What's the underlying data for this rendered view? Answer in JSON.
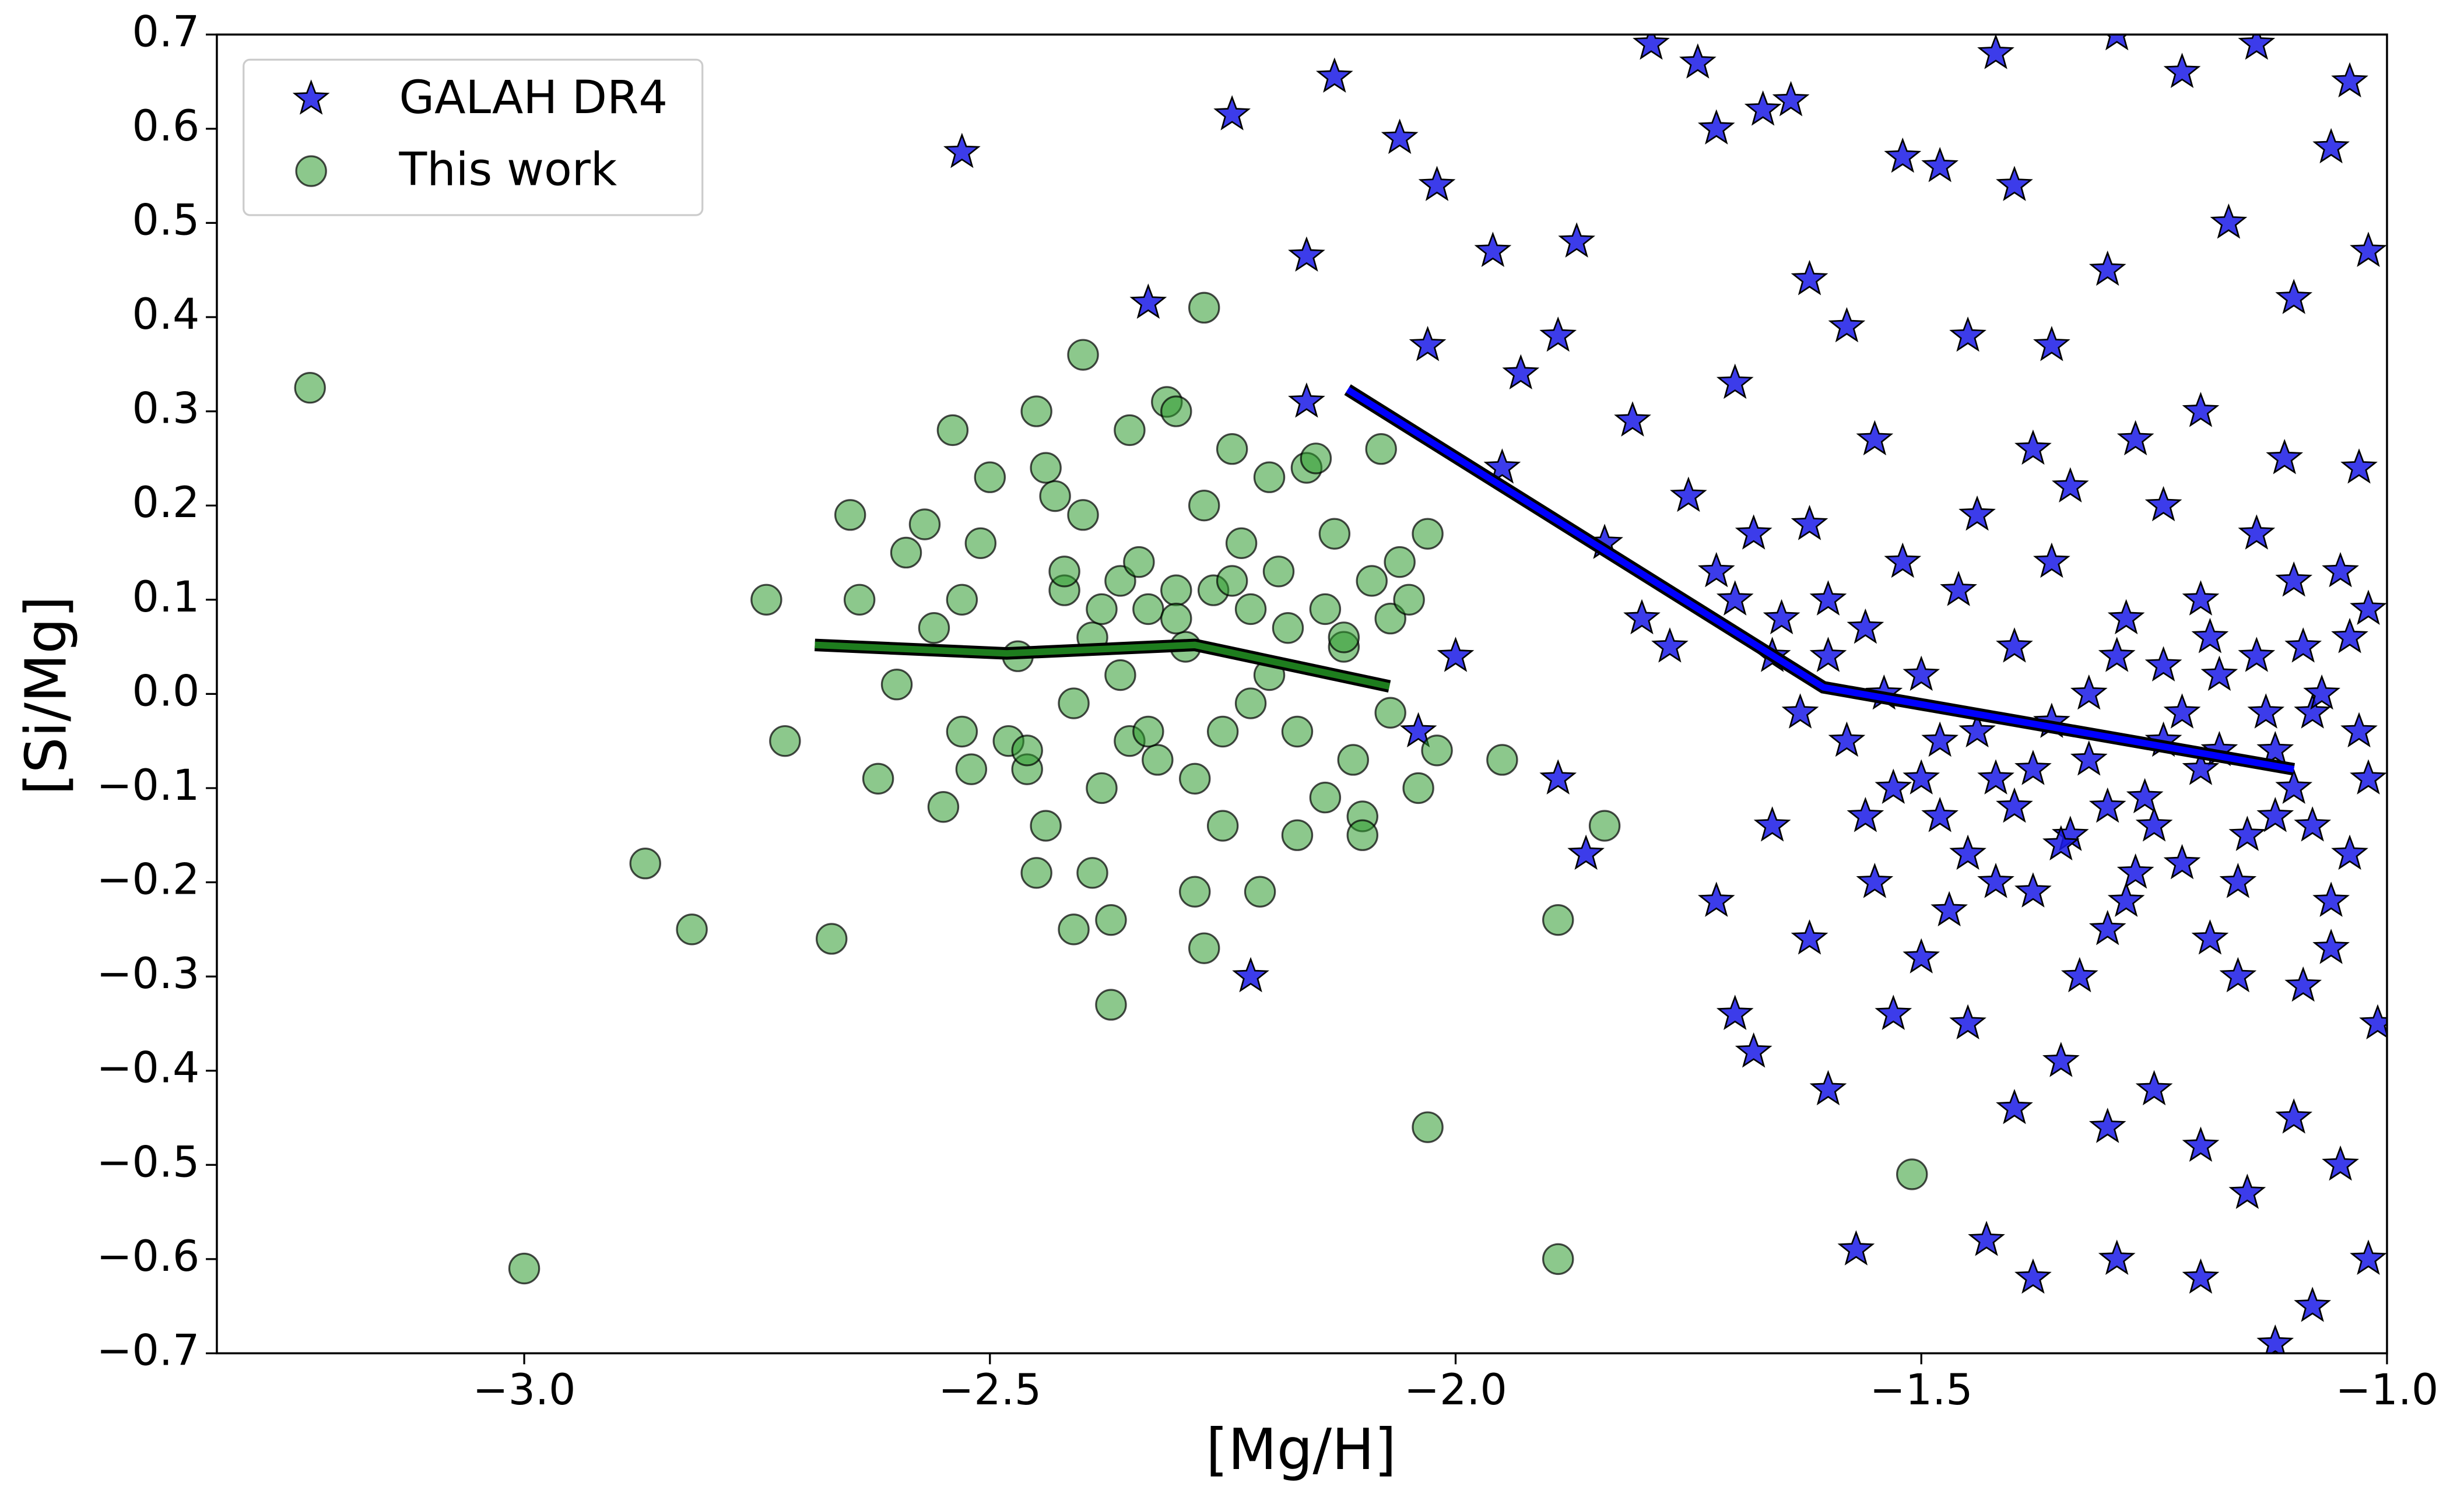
{
  "chart_data": {
    "type": "scatter",
    "x_label": "[Mg/H]",
    "y_label": "[Si/Mg]",
    "xlim": [
      -3.33,
      -1.0
    ],
    "ylim": [
      -0.7,
      0.7
    ],
    "xticks": [
      {
        "value": -3.0,
        "label": "−3.0"
      },
      {
        "value": -2.5,
        "label": "−2.5"
      },
      {
        "value": -2.0,
        "label": "−2.0"
      },
      {
        "value": -1.5,
        "label": "−1.5"
      },
      {
        "value": -1.0,
        "label": "−1.0"
      }
    ],
    "yticks": [
      {
        "value": -0.7,
        "label": "−0.7"
      },
      {
        "value": -0.6,
        "label": "−0.6"
      },
      {
        "value": -0.5,
        "label": "−0.5"
      },
      {
        "value": -0.4,
        "label": "−0.4"
      },
      {
        "value": -0.3,
        "label": "−0.3"
      },
      {
        "value": -0.2,
        "label": "−0.2"
      },
      {
        "value": -0.1,
        "label": "−0.1"
      },
      {
        "value": 0.0,
        "label": "0.0"
      },
      0.1,
      0.2,
      0.3,
      0.4,
      0.5,
      0.6,
      0.7
    ],
    "legend": "upper left",
    "grid": false,
    "series": [
      {
        "name": "GALAH DR4",
        "marker": "star",
        "color": "#1a1ae6",
        "edgecolor": "#000000",
        "x": [
          -2.53,
          -2.33,
          -2.24,
          -2.13,
          -2.22,
          -2.16,
          -2.16,
          -2.06,
          -2.02,
          -2.03,
          -2.0,
          -1.96,
          -2.04,
          -1.89,
          -1.87,
          -1.89,
          -1.86,
          -1.79,
          -1.74,
          -1.72,
          -1.67,
          -1.64,
          -1.62,
          -1.58,
          -1.52,
          -1.48,
          -1.42,
          -1.4,
          -1.36,
          -1.29,
          -1.22,
          -1.14,
          -1.04,
          -1.06,
          -1.1,
          -1.02,
          -1.17,
          -1.3,
          -1.45,
          -1.55,
          -1.7,
          -1.75,
          -1.81,
          -1.93,
          -1.95,
          -1.84,
          -1.8,
          -1.77,
          -1.72,
          -1.68,
          -1.66,
          -1.63,
          -1.6,
          -1.58,
          -1.56,
          -1.53,
          -1.5,
          -1.48,
          -1.46,
          -1.44,
          -1.42,
          -1.4,
          -1.38,
          -1.36,
          -1.34,
          -1.32,
          -1.3,
          -1.28,
          -1.26,
          -1.24,
          -1.22,
          -1.2,
          -1.18,
          -1.16,
          -1.14,
          -1.12,
          -1.1,
          -1.08,
          -1.06,
          -1.04,
          -1.02,
          -1.01,
          -1.55,
          -1.5,
          -1.45,
          -1.4,
          -1.35,
          -1.3,
          -1.25,
          -1.2,
          -1.15,
          -1.1,
          -1.05,
          -1.02,
          -1.43,
          -1.38,
          -1.29,
          -1.2,
          -1.12,
          -1.08,
          -1.57,
          -1.6,
          -1.68,
          -1.7,
          -1.72,
          -1.66,
          -1.62,
          -1.53,
          -1.47,
          -1.33,
          -1.27,
          -1.19,
          -1.09,
          -1.04,
          -1.12,
          -1.18,
          -1.24,
          -1.3,
          -1.36,
          -1.42,
          -1.48,
          -1.54,
          -1.6,
          -1.65,
          -1.7,
          -1.62,
          -1.52,
          -1.44,
          -1.34,
          -1.24,
          -1.14,
          -1.05,
          -1.03,
          -1.11,
          -1.2,
          -1.27,
          -1.38,
          -1.1,
          -1.15,
          -1.2,
          -1.25,
          -1.35,
          -1.4,
          -1.45,
          -1.08,
          -1.03,
          -1.07,
          -1.13,
          -1.22,
          -1.32,
          -1.5,
          -1.56,
          -1.06,
          -1.16,
          -1.28,
          -1.38,
          -1.02,
          -1.09,
          -1.19,
          -1.29
        ],
        "values": [
          0.575,
          0.415,
          0.615,
          0.655,
          -0.3,
          0.465,
          0.31,
          0.59,
          0.54,
          0.37,
          0.04,
          0.47,
          -0.04,
          0.38,
          0.48,
          -0.09,
          -0.17,
          0.69,
          0.67,
          0.6,
          0.62,
          0.63,
          0.44,
          0.39,
          0.57,
          0.56,
          0.68,
          0.54,
          0.37,
          0.7,
          0.66,
          0.69,
          0.65,
          0.58,
          0.42,
          0.47,
          0.5,
          0.45,
          0.38,
          0.27,
          0.33,
          0.21,
          0.29,
          0.34,
          0.24,
          0.16,
          0.08,
          0.05,
          0.13,
          0.17,
          0.04,
          -0.02,
          0.1,
          -0.05,
          0.07,
          -0.1,
          0.02,
          -0.13,
          0.11,
          -0.04,
          -0.2,
          0.05,
          -0.08,
          0.14,
          -0.15,
          0.0,
          -0.25,
          0.08,
          -0.11,
          0.03,
          -0.18,
          0.1,
          -0.06,
          -0.3,
          0.04,
          -0.13,
          0.12,
          -0.02,
          -0.22,
          0.06,
          -0.09,
          -0.35,
          -0.2,
          -0.28,
          -0.35,
          -0.44,
          -0.39,
          -0.46,
          -0.42,
          -0.48,
          -0.53,
          -0.45,
          -0.5,
          -0.6,
          -0.58,
          -0.62,
          -0.6,
          -0.62,
          -0.69,
          -0.65,
          -0.59,
          -0.42,
          -0.38,
          -0.34,
          -0.22,
          -0.14,
          -0.26,
          -0.34,
          -0.23,
          -0.3,
          -0.19,
          -0.26,
          -0.31,
          -0.17,
          -0.06,
          0.02,
          -0.05,
          -0.12,
          -0.03,
          -0.09,
          -0.05,
          0.0,
          0.04,
          0.08,
          0.1,
          0.18,
          0.14,
          0.19,
          0.22,
          0.2,
          0.17,
          0.13,
          0.24,
          0.25,
          0.3,
          0.27,
          0.26,
          -0.1,
          -0.15,
          -0.08,
          -0.14,
          -0.16,
          -0.12,
          -0.17,
          -0.14,
          -0.04,
          0.0,
          -0.02,
          -0.02,
          -0.07,
          -0.09,
          -0.13,
          -0.27,
          -0.2,
          -0.22,
          -0.21,
          0.09,
          0.05,
          0.06,
          0.04
        ]
      },
      {
        "name": "This work",
        "marker": "circle",
        "color": "#2e9a2e",
        "edgecolor": "#000000",
        "x": [
          -3.23,
          -3.0,
          -2.87,
          -2.82,
          -2.74,
          -2.72,
          -2.67,
          -2.65,
          -2.64,
          -2.62,
          -2.6,
          -2.59,
          -2.57,
          -2.56,
          -2.55,
          -2.54,
          -2.53,
          -2.53,
          -2.52,
          -2.51,
          -2.48,
          -2.47,
          -2.46,
          -2.45,
          -2.45,
          -2.44,
          -2.44,
          -2.43,
          -2.42,
          -2.41,
          -2.41,
          -2.4,
          -2.4,
          -2.39,
          -2.39,
          -2.38,
          -2.37,
          -2.37,
          -2.36,
          -2.36,
          -2.35,
          -2.35,
          -2.34,
          -2.33,
          -2.32,
          -2.31,
          -2.3,
          -2.3,
          -2.29,
          -2.28,
          -2.28,
          -2.27,
          -2.27,
          -2.26,
          -2.25,
          -2.25,
          -2.24,
          -2.23,
          -2.22,
          -2.22,
          -2.21,
          -2.2,
          -2.19,
          -2.18,
          -2.17,
          -2.17,
          -2.16,
          -2.15,
          -2.14,
          -2.14,
          -2.27,
          -2.13,
          -2.12,
          -2.11,
          -2.1,
          -2.1,
          -2.09,
          -2.08,
          -2.07,
          -2.07,
          -2.06,
          -2.05,
          -2.04,
          -2.03,
          -2.02,
          -2.03,
          -1.95,
          -1.84,
          -1.89,
          -1.89,
          -1.51,
          -2.42,
          -2.5,
          -2.33,
          -2.2,
          -2.12,
          -2.38,
          -2.3,
          -2.24,
          -2.46
        ],
        "values": [
          0.325,
          -0.61,
          -0.18,
          -0.25,
          0.1,
          -0.05,
          -0.26,
          0.19,
          0.1,
          -0.09,
          0.01,
          0.15,
          0.18,
          0.07,
          -0.12,
          0.28,
          0.1,
          -0.04,
          -0.08,
          0.16,
          -0.05,
          0.04,
          -0.08,
          0.3,
          -0.19,
          0.24,
          -0.14,
          0.21,
          0.11,
          -0.01,
          -0.25,
          0.36,
          0.19,
          0.06,
          -0.19,
          0.09,
          -0.24,
          -0.33,
          0.12,
          0.02,
          0.28,
          -0.05,
          0.14,
          0.09,
          -0.07,
          0.31,
          0.3,
          0.11,
          0.05,
          -0.09,
          -0.21,
          -0.27,
          0.2,
          0.11,
          -0.04,
          -0.14,
          0.26,
          0.16,
          0.09,
          -0.01,
          -0.21,
          0.23,
          0.13,
          0.07,
          -0.04,
          -0.15,
          0.24,
          0.25,
          0.09,
          -0.11,
          0.41,
          0.17,
          0.05,
          -0.07,
          -0.13,
          -0.15,
          0.12,
          0.26,
          0.08,
          -0.02,
          0.14,
          0.1,
          -0.1,
          0.17,
          -0.06,
          -0.46,
          -0.07,
          -0.14,
          -0.24,
          -0.6,
          -0.51,
          0.13,
          0.23,
          -0.04,
          0.02,
          0.06,
          -0.1,
          0.08,
          0.12,
          -0.06
        ]
      }
    ],
    "lines": [
      {
        "color": "#0000ff",
        "edgecolor": "#000000",
        "x": [
          -2.116,
          -1.605,
          -1.1
        ],
        "values": [
          0.323,
          0.007,
          -0.08
        ]
      },
      {
        "color": "#1e7d1e",
        "edgecolor": "#000000",
        "x": [
          -2.688,
          -2.482,
          -2.28,
          -2.071
        ],
        "values": [
          0.052,
          0.043,
          0.052,
          0.008
        ]
      }
    ]
  }
}
